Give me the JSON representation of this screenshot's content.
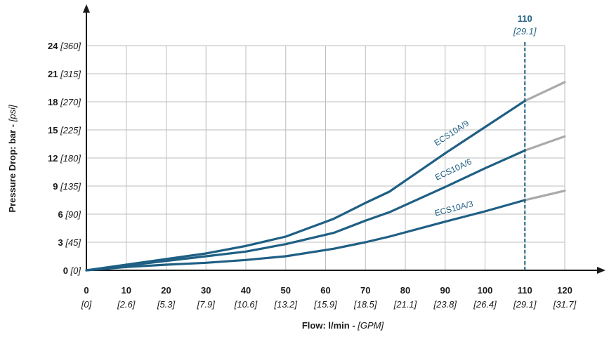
{
  "chart_data": {
    "type": "line",
    "xlabel": "Flow: l/min",
    "xlabel_unit": "[GPM]",
    "ylabel": "Pressure Drop: bar",
    "ylabel_unit": "[psi]",
    "x_ticks": [
      {
        "v": 0,
        "alt": "[0]"
      },
      {
        "v": 10,
        "alt": "[2.6]"
      },
      {
        "v": 20,
        "alt": "[5.3]"
      },
      {
        "v": 30,
        "alt": "[7.9]"
      },
      {
        "v": 40,
        "alt": "[10.6]"
      },
      {
        "v": 50,
        "alt": "[13.2]"
      },
      {
        "v": 60,
        "alt": "[15.9]"
      },
      {
        "v": 70,
        "alt": "[18.5]"
      },
      {
        "v": 80,
        "alt": "[21.1]"
      },
      {
        "v": 90,
        "alt": "[23.8]"
      },
      {
        "v": 100,
        "alt": "[26.4]"
      },
      {
        "v": 110,
        "alt": "[29.1]"
      },
      {
        "v": 120,
        "alt": "[31.7]"
      }
    ],
    "y_ticks": [
      {
        "v": 0,
        "alt": "[0]"
      },
      {
        "v": 3,
        "alt": "[45]"
      },
      {
        "v": 6,
        "alt": "[90]"
      },
      {
        "v": 9,
        "alt": "[135]"
      },
      {
        "v": 12,
        "alt": "[180]"
      },
      {
        "v": 15,
        "alt": "[225]"
      },
      {
        "v": 18,
        "alt": "[270]"
      },
      {
        "v": 21,
        "alt": "[315]"
      },
      {
        "v": 24,
        "alt": "[360]"
      }
    ],
    "xlim": [
      0,
      120
    ],
    "ylim": [
      0,
      24
    ],
    "grid": true,
    "marker": {
      "x": 110,
      "label": "110",
      "sub": "[29.1]"
    },
    "series": [
      {
        "name": "ECS10A/9",
        "x": [
          0,
          10,
          20,
          30,
          40,
          50,
          62,
          70,
          76,
          90,
          100,
          110,
          120
        ],
        "y": [
          0,
          0.6,
          1.2,
          1.8,
          2.6,
          3.6,
          5.5,
          7.2,
          8.4,
          12.5,
          15.3,
          18.1,
          20.1
        ]
      },
      {
        "name": "ECS10A/6",
        "x": [
          0,
          10,
          20,
          30,
          40,
          50,
          62,
          70,
          76,
          90,
          100,
          110,
          120
        ],
        "y": [
          0,
          0.5,
          1.0,
          1.5,
          2.0,
          2.8,
          4.0,
          5.3,
          6.2,
          8.9,
          10.9,
          12.8,
          14.3
        ]
      },
      {
        "name": "ECS10A/3",
        "x": [
          0,
          10,
          20,
          30,
          40,
          50,
          62,
          70,
          76,
          90,
          100,
          110,
          120
        ],
        "y": [
          0,
          0.35,
          0.6,
          0.8,
          1.1,
          1.5,
          2.3,
          3.0,
          3.6,
          5.2,
          6.3,
          7.5,
          8.5
        ]
      }
    ],
    "colors": {
      "series": "#1f5f84",
      "extension": "#aaaaaa",
      "grid": "#bdbdbd",
      "axis": "#1a1a1a",
      "marker": "#1f5f84"
    }
  }
}
